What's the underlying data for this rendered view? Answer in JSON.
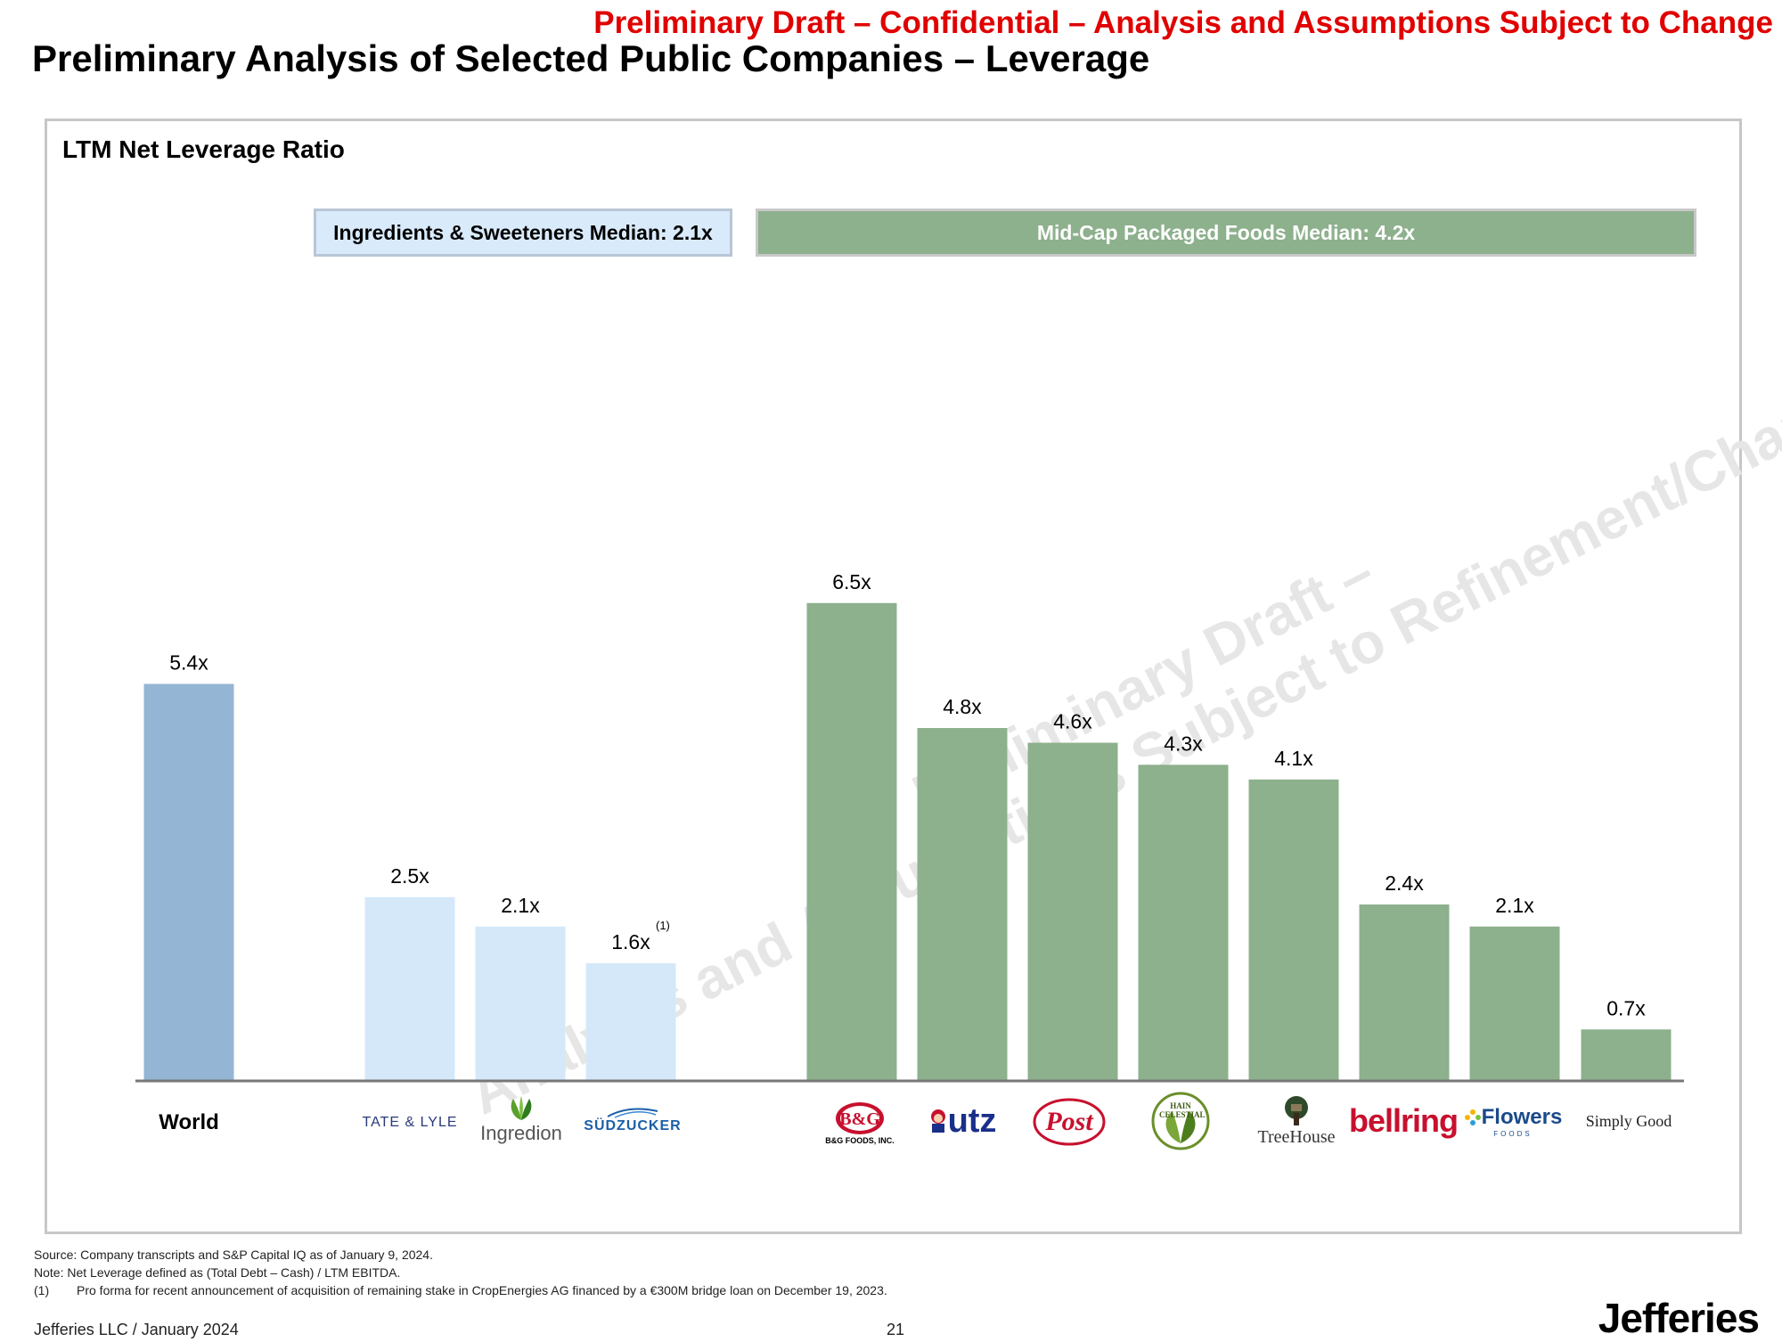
{
  "banner": "Preliminary Draft – Confidential – Analysis and Assumptions Subject to Change",
  "page_title": "Preliminary Analysis of Selected Public Companies – Leverage",
  "medians": {
    "ingredients": "Ingredients & Sweeteners Median: 2.1x",
    "midcap": "Mid-Cap Packaged Foods Median: 4.2x"
  },
  "watermark": {
    "line1": "Preliminary Draft –",
    "line2": "Analysis and Assumptions Subject to Refinement/Change"
  },
  "logos": {
    "world": "World",
    "tate_lyle": "TATE & LYLE",
    "ingredion": "Ingredion",
    "sudzucker": "SÜDZUCKER",
    "bg_foods": "B&G FOODS, INC.",
    "utz": "utz",
    "post": "Post",
    "hain": "HAIN CELESTIAL",
    "treehouse": "TreeHouse",
    "bellring": "bellring",
    "flowers": "Flowers",
    "flowers_sub": "FOODS",
    "simply_good": "Simply Good"
  },
  "colors": {
    "world": "#94b6d4",
    "ingredients": "#d5e8f9",
    "midcap": "#8db08d",
    "banner": "#e00000"
  },
  "chart_data": {
    "type": "bar",
    "title": "LTM Net Leverage Ratio",
    "xlabel": "",
    "ylabel": "",
    "ylim": [
      0,
      7.5
    ],
    "grid": false,
    "categories": [
      "World",
      "Tate & Lyle",
      "Ingredion",
      "Südzucker",
      "B&G Foods",
      "Utz",
      "Post",
      "Hain Celestial",
      "TreeHouse",
      "BellRing",
      "Flowers Foods",
      "Simply Good Foods"
    ],
    "groups": [
      "world",
      "ingredients",
      "ingredients",
      "ingredients",
      "midcap",
      "midcap",
      "midcap",
      "midcap",
      "midcap",
      "midcap",
      "midcap",
      "midcap"
    ],
    "values": [
      5.4,
      2.5,
      2.1,
      1.6,
      6.5,
      4.8,
      4.6,
      4.3,
      4.1,
      2.4,
      2.1,
      0.7
    ],
    "labels": [
      "5.4x",
      "2.5x",
      "2.1x",
      "1.6x",
      "6.5x",
      "4.8x",
      "4.6x",
      "4.3x",
      "4.1x",
      "2.4x",
      "2.1x",
      "0.7x"
    ],
    "label_notes": [
      "",
      "",
      "",
      "(1)",
      "",
      "",
      "",
      "",
      "",
      "",
      "",
      ""
    ],
    "medians": [
      {
        "group": "ingredients",
        "value": 2.1
      },
      {
        "group": "midcap",
        "value": 4.2
      }
    ]
  },
  "footnotes": {
    "source": "Source: Company transcripts and S&P Capital IQ as of January 9, 2024.",
    "note": "Note: Net Leverage defined as (Total Debt – Cash) / LTM EBITDA.",
    "fn1_num": "(1)",
    "fn1_text": "Pro forma for recent announcement of acquisition of remaining stake in CropEnergies AG financed by a €300M bridge loan on December 19, 2023."
  },
  "footer": {
    "left": "Jefferies LLC / January 2024",
    "page_number": "21",
    "brand": "Jefferies"
  }
}
